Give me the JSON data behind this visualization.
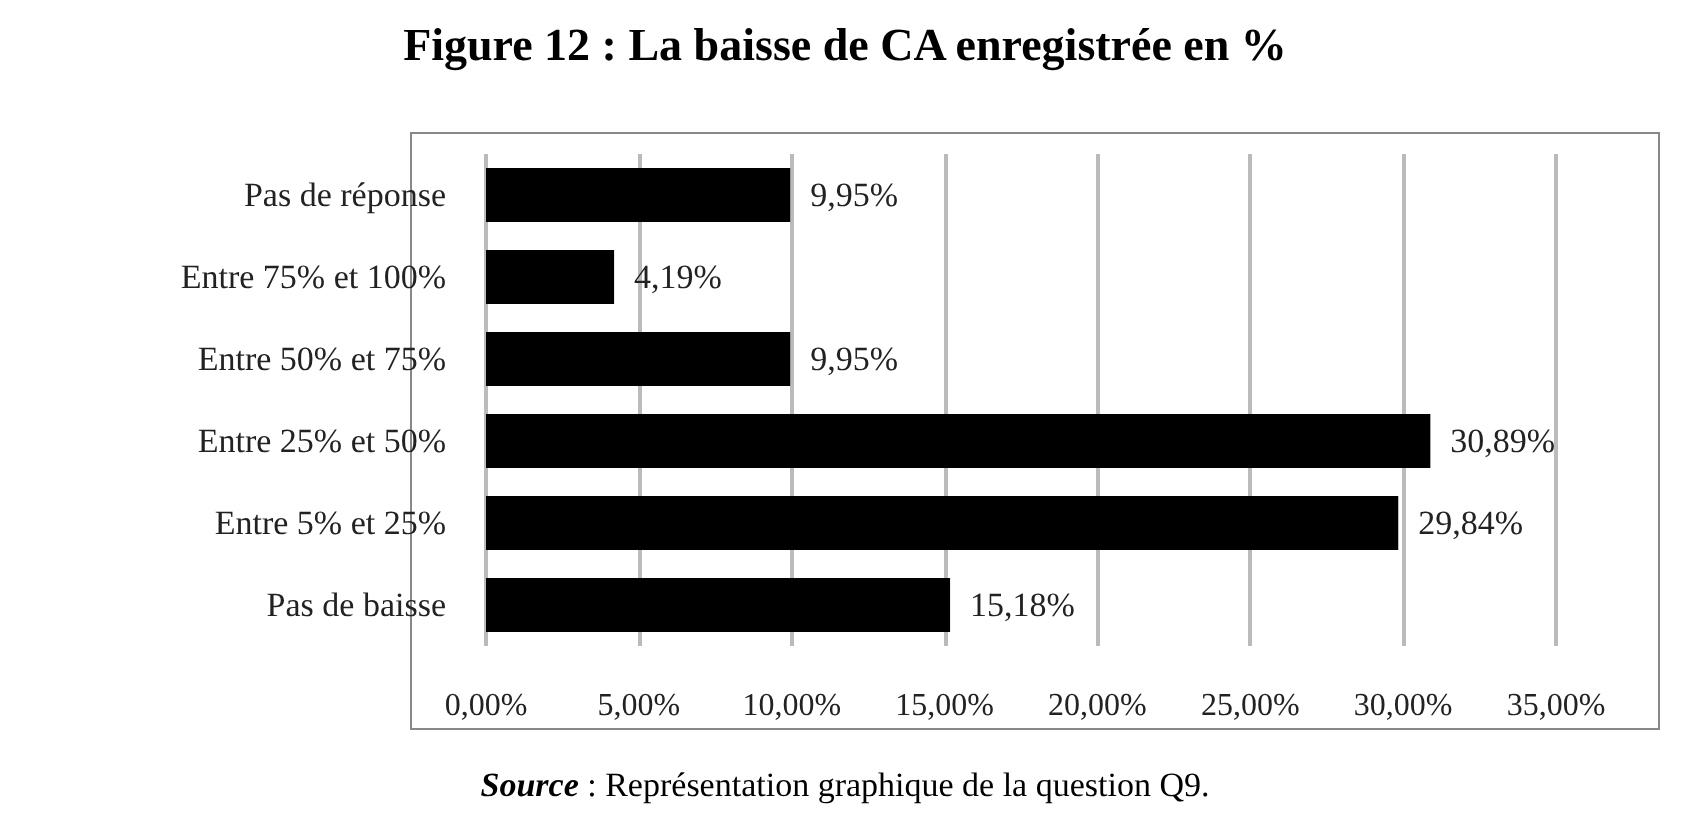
{
  "chart_data": {
    "type": "bar",
    "orientation": "horizontal",
    "title": "Figure 12 : La baisse de CA enregistrée en %",
    "annotations": [
      "Source : Représentation graphique de la question Q9."
    ],
    "categories": [
      "Pas de réponse",
      "Entre 75% et 100%",
      "Entre 50% et 75%",
      "Entre 25% et 50%",
      "Entre 5% et 25%",
      "Pas de baisse"
    ],
    "values": [
      9.95,
      4.19,
      9.95,
      30.89,
      29.84,
      15.18
    ],
    "value_labels": [
      "9,95%",
      "4,19%",
      "9,95%",
      "30,89%",
      "29,84%",
      "15,18%"
    ],
    "color": "#000000",
    "xlim": [
      0,
      35
    ],
    "xticks": [
      {
        "value": 0,
        "label": "0,00%"
      },
      {
        "value": 5,
        "label": "5,00%"
      },
      {
        "value": 10,
        "label": "10,00%"
      },
      {
        "value": 15,
        "label": "15,00%"
      },
      {
        "value": 20,
        "label": "20,00%"
      },
      {
        "value": 25,
        "label": "25,00%"
      },
      {
        "value": 30,
        "label": "30,00%"
      },
      {
        "value": 35,
        "label": "35,00%"
      }
    ],
    "grid": "x"
  }
}
